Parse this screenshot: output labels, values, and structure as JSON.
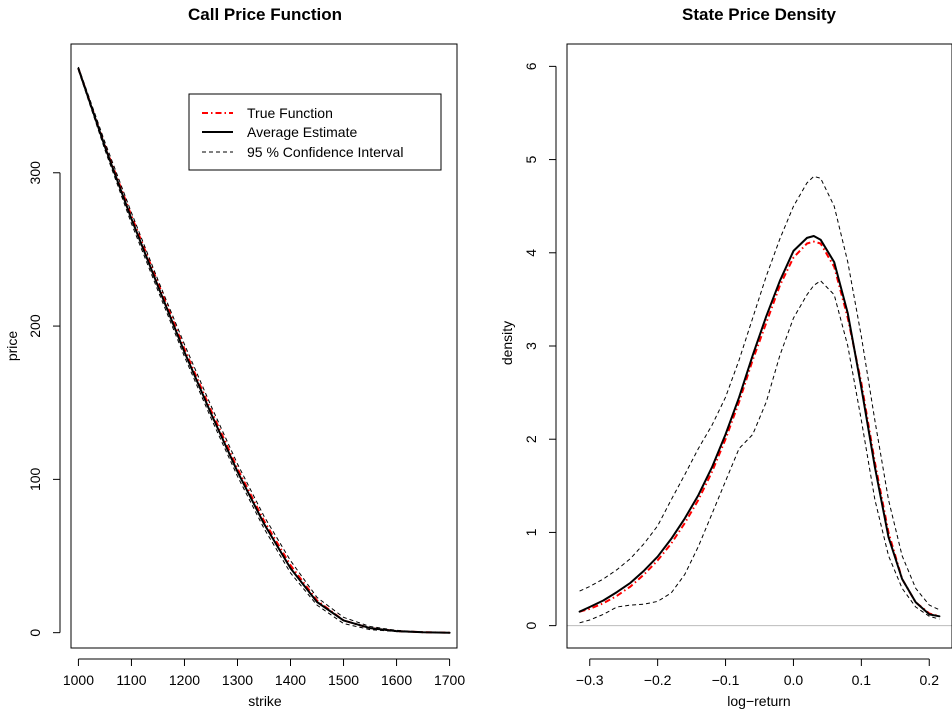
{
  "chart_data": [
    {
      "type": "line",
      "title": "Call Price Function",
      "xlabel": "strike",
      "ylabel": "price",
      "xlim": [
        986,
        1714
      ],
      "ylim": [
        -10,
        384
      ],
      "xticks": [
        1000,
        1100,
        1200,
        1300,
        1400,
        1500,
        1600,
        1700
      ],
      "xtick_labels": [
        "1000",
        "1100",
        "1200",
        "1300",
        "1400",
        "1500",
        "1600",
        "1700"
      ],
      "yticks": [
        0,
        100,
        200,
        300
      ],
      "ytick_labels": [
        "0",
        "100",
        "200",
        "300"
      ],
      "grid": false,
      "legend": {
        "position": "top-right",
        "entries": [
          "True  Function",
          "Average  Estimate",
          "95 %  Confidence  Interval"
        ]
      },
      "series": [
        {
          "name": "True  Function",
          "color": "#ff0000",
          "style": "dashdot",
          "x": [
            1000,
            1050,
            1100,
            1150,
            1200,
            1250,
            1300,
            1350,
            1400,
            1450,
            1500,
            1550,
            1600,
            1650,
            1700
          ],
          "y": [
            368,
            318,
            272,
            228,
            185,
            145,
            107,
            73,
            44,
            21,
            8,
            3,
            1,
            0.3,
            0
          ]
        },
        {
          "name": "Average  Estimate",
          "color": "#000000",
          "style": "solid",
          "x": [
            1000,
            1050,
            1100,
            1150,
            1200,
            1250,
            1300,
            1350,
            1400,
            1450,
            1500,
            1550,
            1600,
            1650,
            1700
          ],
          "y": [
            368,
            317,
            270,
            226,
            183,
            143,
            105,
            71,
            42,
            20,
            8,
            3,
            1,
            0.3,
            0
          ]
        },
        {
          "name": "95 %  Confidence  Interval",
          "color": "#000000",
          "style": "dashed",
          "x": [
            1000,
            1050,
            1100,
            1150,
            1200,
            1250,
            1300,
            1350,
            1400,
            1450,
            1500,
            1550,
            1600,
            1650,
            1700
          ],
          "y": [
            369,
            320,
            274,
            230,
            188,
            148,
            110,
            76,
            47,
            23,
            10,
            4,
            1.5,
            0.5,
            0
          ]
        },
        {
          "name": "95 %  Confidence  Interval",
          "color": "#000000",
          "style": "dashed",
          "x": [
            1000,
            1050,
            1100,
            1150,
            1200,
            1250,
            1300,
            1350,
            1400,
            1450,
            1500,
            1550,
            1600,
            1650,
            1700
          ],
          "y": [
            367,
            315,
            267,
            223,
            180,
            140,
            102,
            68,
            39,
            18,
            6,
            2,
            0.7,
            0.2,
            0
          ]
        }
      ]
    },
    {
      "type": "line",
      "title": "State Price Density",
      "xlabel": "log−return",
      "ylabel": "density",
      "xlim": [
        -0.3335,
        0.2335
      ],
      "ylim": [
        -0.24,
        6.24
      ],
      "xticks": [
        -0.3,
        -0.2,
        -0.1,
        0.0,
        0.1,
        0.2
      ],
      "xtick_labels": [
        "−0.3",
        "−0.2",
        "−0.1",
        "0.0",
        "0.1",
        "0.2"
      ],
      "yticks": [
        0,
        1,
        2,
        3,
        4,
        5,
        6
      ],
      "ytick_labels": [
        "0",
        "1",
        "2",
        "3",
        "4",
        "5",
        "6"
      ],
      "grid": false,
      "reference_line_y": 0,
      "series": [
        {
          "name": "True  Function",
          "color": "#ff0000",
          "style": "dashdot",
          "x": [
            -0.315,
            -0.3,
            -0.28,
            -0.26,
            -0.24,
            -0.22,
            -0.2,
            -0.18,
            -0.16,
            -0.14,
            -0.12,
            -0.1,
            -0.08,
            -0.06,
            -0.04,
            -0.02,
            0.0,
            0.02,
            0.03,
            0.04,
            0.06,
            0.08,
            0.1,
            0.12,
            0.14,
            0.16,
            0.18,
            0.2,
            0.215
          ],
          "y": [
            0.15,
            0.18,
            0.24,
            0.32,
            0.42,
            0.55,
            0.7,
            0.88,
            1.1,
            1.35,
            1.65,
            2.0,
            2.4,
            2.85,
            3.25,
            3.65,
            3.95,
            4.1,
            4.12,
            4.1,
            3.85,
            3.3,
            2.6,
            1.75,
            1.0,
            0.5,
            0.25,
            0.13,
            0.1
          ]
        },
        {
          "name": "Average  Estimate",
          "color": "#000000",
          "style": "solid",
          "x": [
            -0.315,
            -0.3,
            -0.28,
            -0.26,
            -0.24,
            -0.22,
            -0.2,
            -0.18,
            -0.16,
            -0.14,
            -0.12,
            -0.1,
            -0.08,
            -0.06,
            -0.04,
            -0.02,
            0.0,
            0.02,
            0.03,
            0.04,
            0.06,
            0.08,
            0.1,
            0.12,
            0.14,
            0.16,
            0.18,
            0.2,
            0.215
          ],
          "y": [
            0.15,
            0.2,
            0.27,
            0.36,
            0.46,
            0.59,
            0.74,
            0.93,
            1.15,
            1.4,
            1.7,
            2.05,
            2.45,
            2.9,
            3.32,
            3.7,
            4.02,
            4.16,
            4.18,
            4.14,
            3.9,
            3.35,
            2.55,
            1.7,
            0.95,
            0.5,
            0.25,
            0.12,
            0.1
          ]
        },
        {
          "name": "95 %  Confidence  Interval",
          "color": "#000000",
          "style": "dashed",
          "x": [
            -0.315,
            -0.3,
            -0.28,
            -0.26,
            -0.24,
            -0.22,
            -0.2,
            -0.18,
            -0.16,
            -0.14,
            -0.12,
            -0.1,
            -0.08,
            -0.06,
            -0.04,
            -0.02,
            0.0,
            0.02,
            0.03,
            0.04,
            0.06,
            0.08,
            0.1,
            0.12,
            0.14,
            0.16,
            0.18,
            0.2,
            0.215
          ],
          "y": [
            0.37,
            0.42,
            0.5,
            0.6,
            0.72,
            0.88,
            1.07,
            1.35,
            1.62,
            1.9,
            2.15,
            2.45,
            2.85,
            3.3,
            3.75,
            4.15,
            4.5,
            4.75,
            4.82,
            4.8,
            4.5,
            3.9,
            3.1,
            2.2,
            1.35,
            0.75,
            0.4,
            0.22,
            0.17
          ]
        },
        {
          "name": "95 %  Confidence  Interval",
          "color": "#000000",
          "style": "dashed",
          "x": [
            -0.315,
            -0.3,
            -0.28,
            -0.26,
            -0.24,
            -0.22,
            -0.2,
            -0.18,
            -0.16,
            -0.14,
            -0.12,
            -0.1,
            -0.08,
            -0.06,
            -0.04,
            -0.02,
            0.0,
            0.02,
            0.03,
            0.04,
            0.06,
            0.08,
            0.1,
            0.12,
            0.14,
            0.16,
            0.18,
            0.2,
            0.215
          ],
          "y": [
            0.03,
            0.06,
            0.12,
            0.2,
            0.22,
            0.23,
            0.26,
            0.35,
            0.55,
            0.85,
            1.2,
            1.55,
            1.9,
            2.05,
            2.4,
            2.9,
            3.3,
            3.55,
            3.65,
            3.7,
            3.55,
            3.0,
            2.2,
            1.35,
            0.75,
            0.4,
            0.2,
            0.1,
            0.07
          ]
        }
      ]
    }
  ]
}
